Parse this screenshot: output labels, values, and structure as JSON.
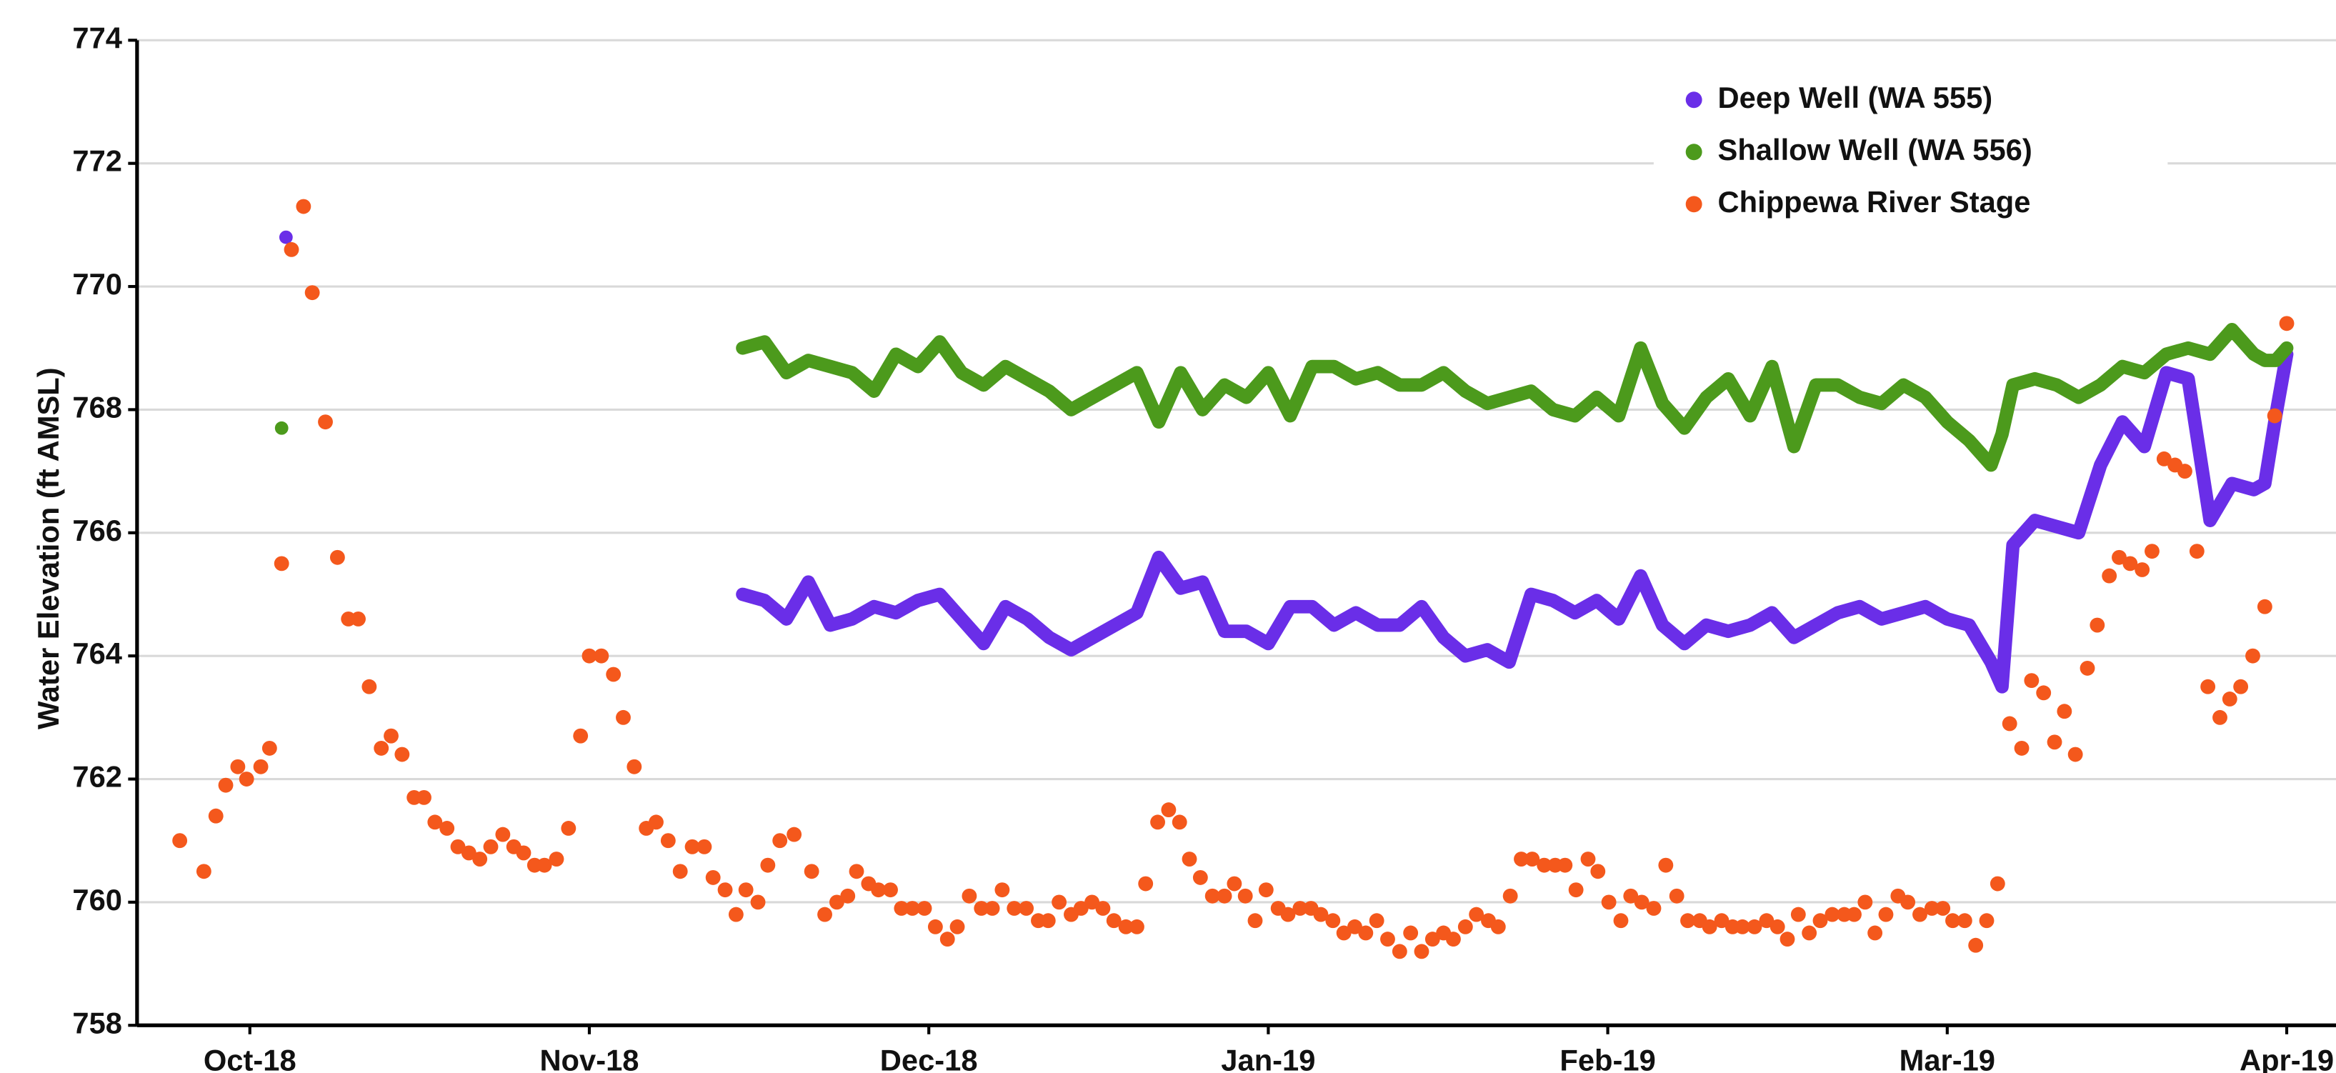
{
  "chart_data": {
    "type": "line",
    "y_label": "Water Elevation (ft AMSL)",
    "xlim": [
      -10.3,
      190.5
    ],
    "xticks": [
      {
        "value": 0,
        "label": "Oct-18"
      },
      {
        "value": 31,
        "label": "Nov-18"
      },
      {
        "value": 62,
        "label": "Dec-18"
      },
      {
        "value": 93,
        "label": "Jan-19"
      },
      {
        "value": 124,
        "label": "Feb-19"
      },
      {
        "value": 155,
        "label": "Mar-19"
      },
      {
        "value": 186,
        "label": "Apr-19"
      }
    ],
    "ylim": [
      758,
      774
    ],
    "yticks": [
      758,
      760,
      762,
      764,
      766,
      768,
      770,
      772,
      774
    ],
    "grid": true,
    "legend": "upper right",
    "series": [
      {
        "name": "Deep Well (WA 555)",
        "color": "#6a2ee8",
        "type": "line",
        "x": [
          3.3,
          20,
          45,
          47,
          49,
          51,
          53,
          55,
          57,
          59,
          61,
          63,
          65,
          67,
          69,
          71,
          73,
          75,
          77,
          79,
          81,
          83,
          85,
          87,
          89,
          91,
          93,
          95,
          97,
          99,
          101,
          103,
          105,
          107,
          109,
          111,
          113,
          115,
          117,
          119,
          121,
          123,
          125,
          127,
          129,
          131,
          133,
          135,
          137,
          139,
          141,
          143,
          145,
          147,
          149,
          151,
          153,
          155,
          157,
          159,
          160,
          161,
          163,
          165,
          167,
          169,
          171,
          173,
          175,
          177,
          179,
          181,
          183,
          184,
          185,
          186
        ],
        "values": [
          770.8,
          null,
          765.0,
          764.9,
          764.6,
          765.2,
          764.5,
          764.6,
          764.8,
          764.7,
          764.9,
          765.0,
          764.6,
          764.2,
          764.8,
          764.6,
          764.3,
          764.1,
          764.3,
          764.5,
          764.7,
          765.6,
          765.1,
          765.2,
          764.4,
          764.4,
          764.2,
          764.8,
          764.8,
          764.5,
          764.7,
          764.5,
          764.5,
          764.8,
          764.3,
          764.0,
          764.1,
          763.9,
          765.0,
          764.9,
          764.7,
          764.9,
          764.6,
          765.3,
          764.5,
          764.2,
          764.5,
          764.4,
          764.5,
          764.7,
          764.3,
          764.5,
          764.7,
          764.8,
          764.6,
          764.7,
          764.8,
          764.6,
          764.5,
          763.9,
          763.5,
          765.8,
          766.2,
          766.1,
          766.0,
          767.1,
          767.8,
          767.4,
          768.6,
          768.5,
          766.2,
          766.8,
          766.7,
          766.8,
          767.9,
          768.9
        ]
      },
      {
        "name": "Shallow Well (WA 556)",
        "color": "#4c9a1c",
        "type": "line",
        "x": [
          2.9,
          20,
          45,
          47,
          49,
          51,
          53,
          55,
          57,
          59,
          61,
          63,
          65,
          67,
          69,
          71,
          73,
          75,
          77,
          79,
          81,
          83,
          85,
          87,
          89,
          91,
          93,
          95,
          97,
          99,
          101,
          103,
          105,
          107,
          109,
          111,
          113,
          115,
          117,
          119,
          121,
          123,
          125,
          127,
          129,
          131,
          133,
          135,
          137,
          139,
          141,
          143,
          145,
          147,
          149,
          151,
          153,
          155,
          157,
          159,
          160,
          161,
          163,
          165,
          167,
          169,
          171,
          173,
          175,
          177,
          179,
          181,
          183,
          184,
          185,
          186
        ],
        "values": [
          767.7,
          null,
          769.0,
          769.1,
          768.6,
          768.8,
          768.7,
          768.6,
          768.3,
          768.9,
          768.7,
          769.1,
          768.6,
          768.4,
          768.7,
          768.5,
          768.3,
          768.0,
          768.2,
          768.4,
          768.6,
          767.8,
          768.6,
          768.0,
          768.4,
          768.2,
          768.6,
          767.9,
          768.7,
          768.7,
          768.5,
          768.6,
          768.4,
          768.4,
          768.6,
          768.3,
          768.1,
          768.2,
          768.3,
          768.0,
          767.9,
          768.2,
          767.9,
          769.0,
          768.1,
          767.7,
          768.2,
          768.5,
          767.9,
          768.7,
          767.4,
          768.4,
          768.4,
          768.2,
          768.1,
          768.4,
          768.2,
          767.8,
          767.5,
          767.1,
          767.6,
          768.4,
          768.5,
          768.4,
          768.2,
          768.4,
          768.7,
          768.6,
          768.9,
          769.0,
          768.9,
          769.3,
          768.9,
          768.8,
          768.8,
          769.0
        ]
      },
      {
        "name": "Chippewa River Stage",
        "color": "#f4581c",
        "type": "scatter",
        "x": [
          -6.4,
          -4.2,
          -3.1,
          -2.2,
          -1.1,
          -0.3,
          1.0,
          1.8,
          2.9,
          3.8,
          4.9,
          5.7,
          6.9,
          8.0,
          9.0,
          9.9,
          10.9,
          12.0,
          12.9,
          13.9,
          15.0,
          15.9,
          16.9,
          18.0,
          19.0,
          20.0,
          21.0,
          22.0,
          23.1,
          24.1,
          25.0,
          26.0,
          26.9,
          28.0,
          29.1,
          30.2,
          31.0,
          32.1,
          33.2,
          34.1,
          35.1,
          36.2,
          37.1,
          38.2,
          39.3,
          40.4,
          41.5,
          42.3,
          43.4,
          44.4,
          45.3,
          46.4,
          47.3,
          48.4,
          49.7,
          51.3,
          52.5,
          53.6,
          54.6,
          55.4,
          56.5,
          57.4,
          58.5,
          59.5,
          60.5,
          61.6,
          62.6,
          63.7,
          64.6,
          65.7,
          66.8,
          67.8,
          68.7,
          69.8,
          70.9,
          72.0,
          72.9,
          73.9,
          75.0,
          75.9,
          76.9,
          77.9,
          78.9,
          80.0,
          81.0,
          81.8,
          82.9,
          83.9,
          84.9,
          85.8,
          86.8,
          87.9,
          89.0,
          89.9,
          90.9,
          91.8,
          92.8,
          93.9,
          94.8,
          95.9,
          96.9,
          97.8,
          98.9,
          99.9,
          100.9,
          101.9,
          102.9,
          103.9,
          105.0,
          106.0,
          107.0,
          108.0,
          109.0,
          109.9,
          111.0,
          112.0,
          113.1,
          114.0,
          115.1,
          116.1,
          117.1,
          118.2,
          119.2,
          120.1,
          121.1,
          122.2,
          123.1,
          124.1,
          125.2,
          126.1,
          127.1,
          128.2,
          129.3,
          130.3,
          131.3,
          132.4,
          133.3,
          134.4,
          135.4,
          136.3,
          137.4,
          138.5,
          139.5,
          140.4,
          141.4,
          142.4,
          143.4,
          144.5,
          145.6,
          146.5,
          147.5,
          148.4,
          149.4,
          150.5,
          151.4,
          152.5,
          153.6,
          154.6,
          155.5,
          156.6,
          157.6,
          158.6,
          159.6,
          160.7,
          161.8,
          162.7,
          163.8,
          164.8,
          165.7,
          166.7,
          167.8,
          168.7,
          169.8,
          170.7,
          171.7,
          172.8,
          173.7,
          174.8,
          175.8,
          176.7,
          177.8,
          178.8,
          179.9,
          180.8,
          181.8,
          182.9,
          184.0,
          184.9,
          186.0
        ],
        "values": [
          761.0,
          760.5,
          761.4,
          761.9,
          762.2,
          762.0,
          762.2,
          762.5,
          765.5,
          770.6,
          771.3,
          769.9,
          767.8,
          765.6,
          764.6,
          764.6,
          763.5,
          762.5,
          762.7,
          762.4,
          761.7,
          761.7,
          761.3,
          761.2,
          760.9,
          760.8,
          760.7,
          760.9,
          761.1,
          760.9,
          760.8,
          760.6,
          760.6,
          760.7,
          761.2,
          762.7,
          764.0,
          764.0,
          763.7,
          763.0,
          762.2,
          761.2,
          761.3,
          761.0,
          760.5,
          760.9,
          760.9,
          760.4,
          760.2,
          759.8,
          760.2,
          760.0,
          760.6,
          761.0,
          761.1,
          760.5,
          759.8,
          760.0,
          760.1,
          760.5,
          760.3,
          760.2,
          760.2,
          759.9,
          759.9,
          759.9,
          759.6,
          759.4,
          759.6,
          760.1,
          759.9,
          759.9,
          760.2,
          759.9,
          759.9,
          759.7,
          759.7,
          760.0,
          759.8,
          759.9,
          760.0,
          759.9,
          759.7,
          759.6,
          759.6,
          760.3,
          761.3,
          761.5,
          761.3,
          760.7,
          760.4,
          760.1,
          760.1,
          760.3,
          760.1,
          759.7,
          760.2,
          759.9,
          759.8,
          759.9,
          759.9,
          759.8,
          759.7,
          759.5,
          759.6,
          759.5,
          759.7,
          759.4,
          759.2,
          759.5,
          759.2,
          759.4,
          759.5,
          759.4,
          759.6,
          759.8,
          759.7,
          759.6,
          760.1,
          760.7,
          760.7,
          760.6,
          760.6,
          760.6,
          760.2,
          760.7,
          760.5,
          760.0,
          759.7,
          760.1,
          760.0,
          759.9,
          760.6,
          760.1,
          759.7,
          759.7,
          759.6,
          759.7,
          759.6,
          759.6,
          759.6,
          759.7,
          759.6,
          759.4,
          759.8,
          759.5,
          759.7,
          759.8,
          759.8,
          759.8,
          760.0,
          759.5,
          759.8,
          760.1,
          760.0,
          759.8,
          759.9,
          759.9,
          759.7,
          759.7,
          759.3,
          759.7,
          760.3,
          762.9,
          762.5,
          763.6,
          763.4,
          762.6,
          763.1,
          762.4,
          763.8,
          764.5,
          765.3,
          765.6,
          765.5,
          765.4,
          765.7,
          767.2,
          767.1,
          767.0,
          765.7,
          763.5,
          763.0,
          763.3,
          763.5,
          764.0,
          764.8,
          767.9,
          769.4
        ]
      }
    ]
  }
}
